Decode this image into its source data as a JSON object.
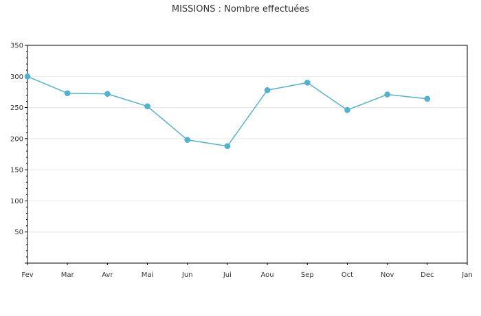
{
  "chart_data": {
    "type": "line",
    "title": "MISSIONS : Nombre effectuées",
    "xlabel": "",
    "ylabel": "",
    "categories": [
      "Fev",
      "Mar",
      "Avr",
      "Mai",
      "Jun",
      "Jui",
      "Aou",
      "Sep",
      "Oct",
      "Nov",
      "Dec",
      "Jan"
    ],
    "series": [
      {
        "values": [
          300,
          273,
          272,
          252,
          198,
          188,
          278,
          290,
          246,
          271,
          264,
          null
        ]
      }
    ],
    "ylim": [
      0,
      350
    ],
    "yticks": [
      50,
      100,
      150,
      200,
      250,
      300,
      350
    ],
    "grid": true,
    "legend": "none",
    "colors": {
      "line": "#4fb3d3",
      "marker": "#4fb3d3",
      "grid": "#e6e6e6",
      "axis": "#000000"
    }
  }
}
